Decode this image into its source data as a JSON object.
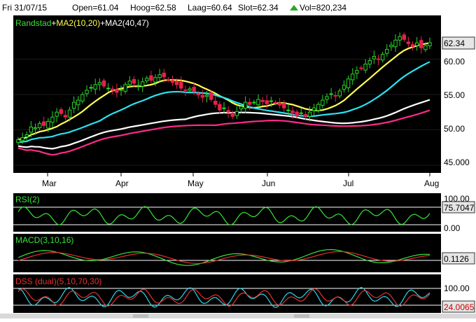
{
  "header": {
    "date": "Fri 31/07/15",
    "open": "Open=61.04",
    "high": "Hoog=62.58",
    "low": "Laag=60.64",
    "close": "Slot=62.34",
    "volume": "Vol=820,234"
  },
  "colors": {
    "background": "#000000",
    "up_candle": "#2bd62b",
    "down_candle": "#e8204a",
    "ma_fast": "#ffff55",
    "ma_mid": "#29e3f0",
    "ma_slow": "#ffffff",
    "ma_slowest": "#ff2a8a",
    "rsi_line": "#39e339",
    "macd_line": "#39e339",
    "macd_signal": "#e83030",
    "dss_fast": "#29d7e8",
    "dss_slow": "#e83030"
  },
  "chart_data": [
    {
      "type": "candlestick",
      "legend": {
        "name": "Randstad",
        "plus1": "+",
        "ma1": "MA2(10,20)",
        "plus2": "+",
        "ma2": "MA2(40,47)"
      },
      "x_labels": [
        "Mar",
        "Apr",
        "May",
        "Jun",
        "Jul",
        "Aug"
      ],
      "y_ticks": [
        "60.00",
        "55.00",
        "50.00",
        "45.000"
      ],
      "ylim": [
        44,
        66
      ],
      "last_price": "62.34",
      "close": [
        48.6,
        48.9,
        49.3,
        50.4,
        50.3,
        50.9,
        50.6,
        51.2,
        51.8,
        52.5,
        52.3,
        51.8,
        52.8,
        53.9,
        54.2,
        55.0,
        55.6,
        56.0,
        56.4,
        56.7,
        56.2,
        55.9,
        55.6,
        55.3,
        55.7,
        56.4,
        56.9,
        56.6,
        56.3,
        56.8,
        57.3,
        57.0,
        57.4,
        57.8,
        57.5,
        57.1,
        56.7,
        56.4,
        55.9,
        55.6,
        55.8,
        55.4,
        55.0,
        54.6,
        54.9,
        54.3,
        53.6,
        52.8,
        53.1,
        52.5,
        51.9,
        52.6,
        53.3,
        53.9,
        53.6,
        53.9,
        54.3,
        54.0,
        53.7,
        54.1,
        53.8,
        53.5,
        53.1,
        52.8,
        52.4,
        52.0,
        52.4,
        51.9,
        52.5,
        53.1,
        53.6,
        54.2,
        54.7,
        55.1,
        54.8,
        55.5,
        56.3,
        57.2,
        57.9,
        58.4,
        58.7,
        59.3,
        59.8,
        60.4,
        60.0,
        60.7,
        61.4,
        62.0,
        62.7,
        63.2,
        62.8,
        62.2,
        61.8,
        62.3,
        61.6,
        61.9,
        62.34
      ],
      "series": [
        {
          "name": "MA2(10,20)",
          "period": 10
        },
        {
          "name": "",
          "period": 20
        },
        {
          "name": "MA2(40,47)",
          "period": 40
        },
        {
          "name": "",
          "period": 47
        }
      ]
    },
    {
      "type": "line",
      "title": "RSI(2)",
      "y_ticks": [
        "100.00",
        "0.00"
      ],
      "last_value": "75.7047",
      "ylim": [
        0,
        100
      ]
    },
    {
      "type": "line",
      "title": "MACD(3,10,16)",
      "last_value": "0.1126"
    },
    {
      "type": "line",
      "title": "DSS (dual)(5,10,70,30)",
      "y_ticks": [
        "100.00",
        "0.00"
      ],
      "last_value": "24.0065",
      "ylim": [
        0,
        100
      ]
    }
  ]
}
